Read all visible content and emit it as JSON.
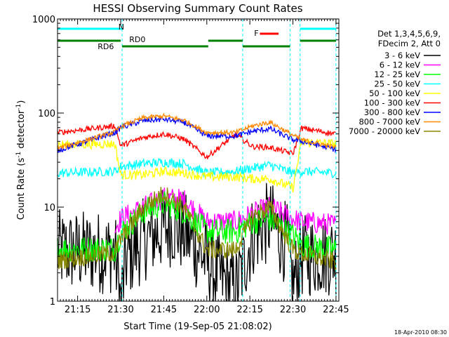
{
  "chart_data": {
    "type": "line",
    "title": "HESSI Observing Summary Count Rates",
    "xlabel": "Start Time (19-Sep-05 21:08:02)",
    "ylabel_main": "Count Rate (s",
    "ylabel_sup1": "-1",
    "ylabel_mid": " detector",
    "ylabel_sup2": "-1",
    "ylabel_end": ")",
    "y_scale": "log",
    "ylim": [
      1,
      1000
    ],
    "xlim_minutes": [
      0,
      98
    ],
    "x_ticks": [
      {
        "label": "21:15",
        "min": 7
      },
      {
        "label": "21:30",
        "min": 22
      },
      {
        "label": "21:45",
        "min": 37
      },
      {
        "label": "22:00",
        "min": 52
      },
      {
        "label": "22:15",
        "min": 67
      },
      {
        "label": "22:30",
        "min": 82
      },
      {
        "label": "22:45",
        "min": 97
      }
    ],
    "y_ticks": [
      {
        "label": "1",
        "v": 1
      },
      {
        "label": "10",
        "v": 10
      },
      {
        "label": "100",
        "v": 100
      },
      {
        "label": "1000",
        "v": 1000
      }
    ],
    "legend_header": [
      "Det 1,3,4,5,6,9,",
      "FDecim 2, Att 0"
    ],
    "series": [
      {
        "name": "3 - 6 keV",
        "color": "#000000",
        "values": [
          [
            0,
            3.4
          ],
          [
            20,
            3.3
          ],
          [
            22,
            1.0
          ],
          [
            24,
            2.8
          ],
          [
            30,
            4.5
          ],
          [
            40,
            6.5
          ],
          [
            45,
            5.0
          ],
          [
            55,
            2.0
          ],
          [
            62,
            1.3
          ],
          [
            68,
            5
          ],
          [
            74,
            7
          ],
          [
            80,
            4
          ],
          [
            82,
            1.5
          ],
          [
            85,
            3
          ],
          [
            97,
            3.2
          ]
        ]
      },
      {
        "name": "6 - 12 keV",
        "color": "#ff00ff",
        "values": [
          [
            20,
            6.0
          ],
          [
            22,
            7.5
          ],
          [
            30,
            10
          ],
          [
            37,
            12.5
          ],
          [
            44,
            12
          ],
          [
            52,
            7
          ],
          [
            62,
            7
          ],
          [
            68,
            8.5
          ],
          [
            74,
            10
          ],
          [
            82,
            7.5
          ],
          [
            85,
            7
          ],
          [
            97,
            6.5
          ]
        ]
      },
      {
        "name": "12 - 25 keV",
        "color": "#00ff00",
        "values": [
          [
            0,
            3.6
          ],
          [
            20,
            3.6
          ],
          [
            22,
            5.3
          ],
          [
            30,
            9
          ],
          [
            37,
            11
          ],
          [
            44,
            9
          ],
          [
            52,
            5.5
          ],
          [
            62,
            5.5
          ],
          [
            68,
            7
          ],
          [
            74,
            7.5
          ],
          [
            82,
            5
          ],
          [
            85,
            4
          ],
          [
            97,
            3.5
          ]
        ]
      },
      {
        "name": "25 - 50 keV",
        "color": "#00ffff",
        "values": [
          [
            0,
            23
          ],
          [
            20,
            24
          ],
          [
            22,
            27
          ],
          [
            30,
            29
          ],
          [
            37,
            30
          ],
          [
            44,
            29
          ],
          [
            52,
            23
          ],
          [
            62,
            24
          ],
          [
            68,
            26
          ],
          [
            74,
            28
          ],
          [
            82,
            23
          ],
          [
            85,
            24
          ],
          [
            97,
            23
          ]
        ]
      },
      {
        "name": "50 - 100 keV",
        "color": "#ffff00",
        "values": [
          [
            0,
            46
          ],
          [
            20,
            47
          ],
          [
            22,
            22
          ],
          [
            30,
            22
          ],
          [
            37,
            24
          ],
          [
            44,
            23
          ],
          [
            52,
            21
          ],
          [
            62,
            21
          ],
          [
            68,
            20
          ],
          [
            74,
            20
          ],
          [
            82,
            16
          ],
          [
            85,
            49
          ],
          [
            97,
            47
          ]
        ]
      },
      {
        "name": "100 - 300 keV",
        "color": "#ff0000",
        "values": [
          [
            0,
            62
          ],
          [
            20,
            73
          ],
          [
            22,
            45
          ],
          [
            30,
            55
          ],
          [
            37,
            60
          ],
          [
            44,
            53
          ],
          [
            52,
            34
          ],
          [
            62,
            59
          ],
          [
            68,
            44
          ],
          [
            74,
            43
          ],
          [
            82,
            37
          ],
          [
            85,
            69
          ],
          [
            97,
            60
          ]
        ]
      },
      {
        "name": "300 - 800 keV",
        "color": "#0000ff",
        "values": [
          [
            0,
            40
          ],
          [
            20,
            62
          ],
          [
            22,
            70
          ],
          [
            30,
            83
          ],
          [
            37,
            86
          ],
          [
            44,
            80
          ],
          [
            52,
            57
          ],
          [
            62,
            57
          ],
          [
            68,
            64
          ],
          [
            74,
            68
          ],
          [
            82,
            52
          ],
          [
            85,
            50
          ],
          [
            97,
            41
          ]
        ]
      },
      {
        "name": "800 - 7000 keV",
        "color": "#ff8800",
        "values": [
          [
            0,
            42
          ],
          [
            20,
            63
          ],
          [
            22,
            72
          ],
          [
            30,
            89
          ],
          [
            37,
            93
          ],
          [
            44,
            84
          ],
          [
            52,
            62
          ],
          [
            62,
            62
          ],
          [
            68,
            73
          ],
          [
            74,
            80
          ],
          [
            82,
            58
          ],
          [
            85,
            52
          ],
          [
            97,
            43
          ]
        ]
      },
      {
        "name": "7000 - 20000 keV",
        "color": "#888800",
        "values": [
          [
            0,
            2.7
          ],
          [
            20,
            3.3
          ],
          [
            22,
            4.5
          ],
          [
            30,
            10
          ],
          [
            37,
            14
          ],
          [
            44,
            10
          ],
          [
            52,
            3.5
          ],
          [
            62,
            3.5
          ],
          [
            68,
            8
          ],
          [
            74,
            10
          ],
          [
            82,
            3.5
          ],
          [
            85,
            3.2
          ],
          [
            97,
            2.6
          ]
        ]
      }
    ],
    "annotations": [
      {
        "label": "N",
        "color": "#00ffff"
      },
      {
        "label": "RD0",
        "color": "#008000"
      },
      {
        "label": "RD6",
        "color": "#008000"
      },
      {
        "label": "F",
        "color": "#ff0000"
      }
    ],
    "timestamp": "18-Apr-2010 08:30"
  }
}
